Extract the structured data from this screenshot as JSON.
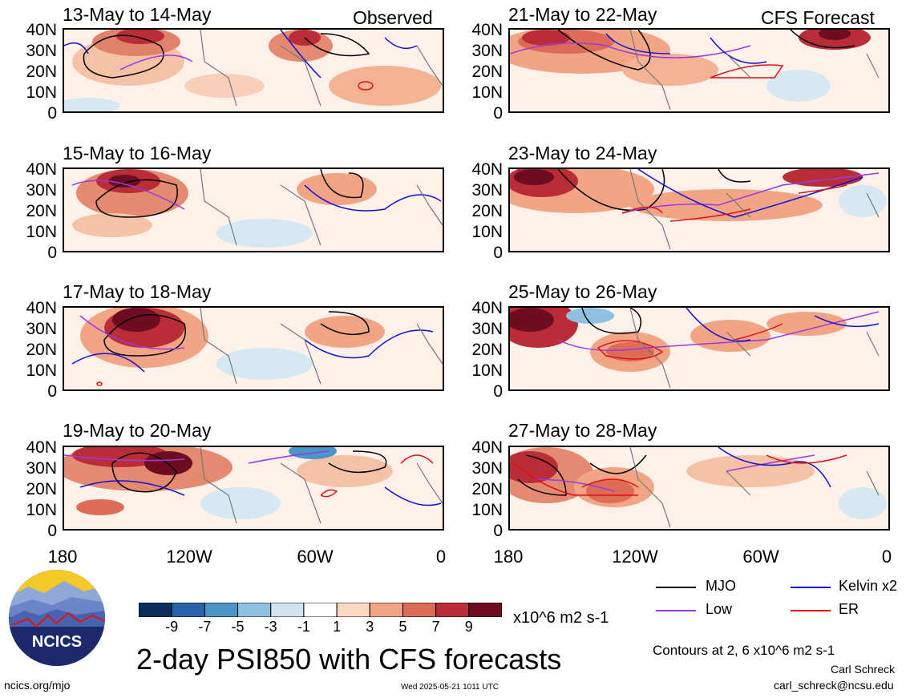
{
  "panels": [
    {
      "title": "13-May to 14-May",
      "label": "Observed"
    },
    {
      "title": "21-May to 22-May",
      "label": "CFS Forecast"
    },
    {
      "title": "15-May to 16-May",
      "label": ""
    },
    {
      "title": "23-May to 24-May",
      "label": ""
    },
    {
      "title": "17-May to 18-May",
      "label": ""
    },
    {
      "title": "25-May to 26-May",
      "label": ""
    },
    {
      "title": "19-May to 20-May",
      "label": ""
    },
    {
      "title": "27-May to 28-May",
      "label": ""
    }
  ],
  "lat_labels": [
    "40N",
    "30N",
    "20N",
    "10N",
    "0"
  ],
  "lon_labels": [
    "180",
    "120W",
    "60W",
    "0"
  ],
  "colorbar": {
    "colors": [
      "#0b2d5e",
      "#2565a8",
      "#4b95c8",
      "#8ec2e0",
      "#cfe4f0",
      "#ffffff",
      "#fbd8c2",
      "#f2a584",
      "#dc6c55",
      "#b92e36",
      "#6e0d22"
    ],
    "ticks": [
      "-9",
      "-7",
      "-5",
      "-3",
      "-1",
      "1",
      "3",
      "5",
      "7",
      "9"
    ],
    "units": "x10^6 m2 s-1"
  },
  "legend": {
    "items": [
      {
        "label": "MJO",
        "color": "#000000"
      },
      {
        "label": "Kelvin x2",
        "color": "#1010d8"
      },
      {
        "label": "Low",
        "color": "#9a3ae0"
      },
      {
        "label": "ER",
        "color": "#e01010"
      }
    ],
    "contours_note": "Contours at 2, 6 x10^6 m2 s-1"
  },
  "title": "2-day PSI850 with CFS forecasts",
  "logo_text": "NCICS",
  "footer": {
    "url": "ncics.org/mjo",
    "timestamp": "Wed 2025-05-21 1011 UTC",
    "author": "Carl Schreck",
    "email": "carl_schreck@ncsu.edu"
  },
  "map_icons": {
    "coastline": "coastline-outline",
    "shading": "streamfunction-anomaly"
  }
}
